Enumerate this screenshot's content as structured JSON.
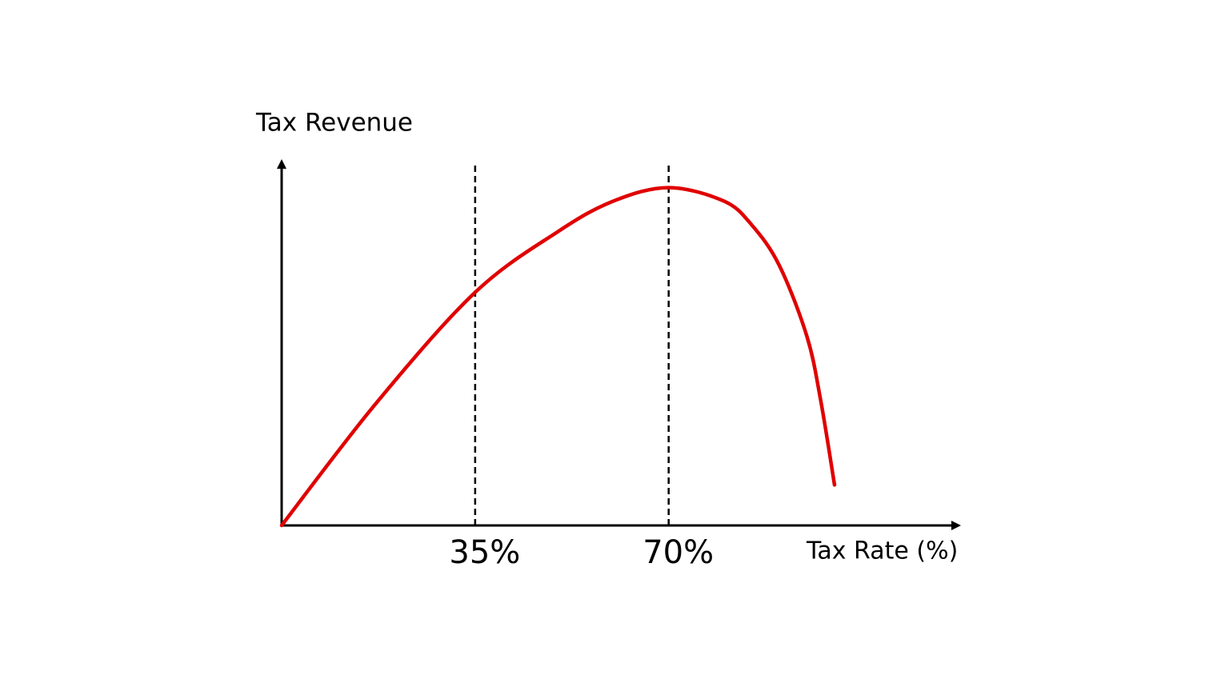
{
  "chart_data": {
    "type": "line",
    "x_label": "Tax Rate (%)",
    "y_label": "Tax Revenue",
    "x": [
      0,
      17,
      35,
      50,
      60,
      70,
      80,
      85,
      90,
      95,
      97.5,
      100
    ],
    "series": [
      {
        "color": "#e00000",
        "values": [
          0,
          36,
          69,
          87,
          96,
          100,
          96,
          89,
          77,
          56,
          37,
          12
        ]
      }
    ],
    "xlim": [
      0,
      122
    ],
    "ylim": [
      0,
      107
    ],
    "xticks": [
      {
        "value": 35,
        "label": "35%"
      },
      {
        "value": 70,
        "label": "70%"
      }
    ],
    "tick_lines": "dashed"
  }
}
